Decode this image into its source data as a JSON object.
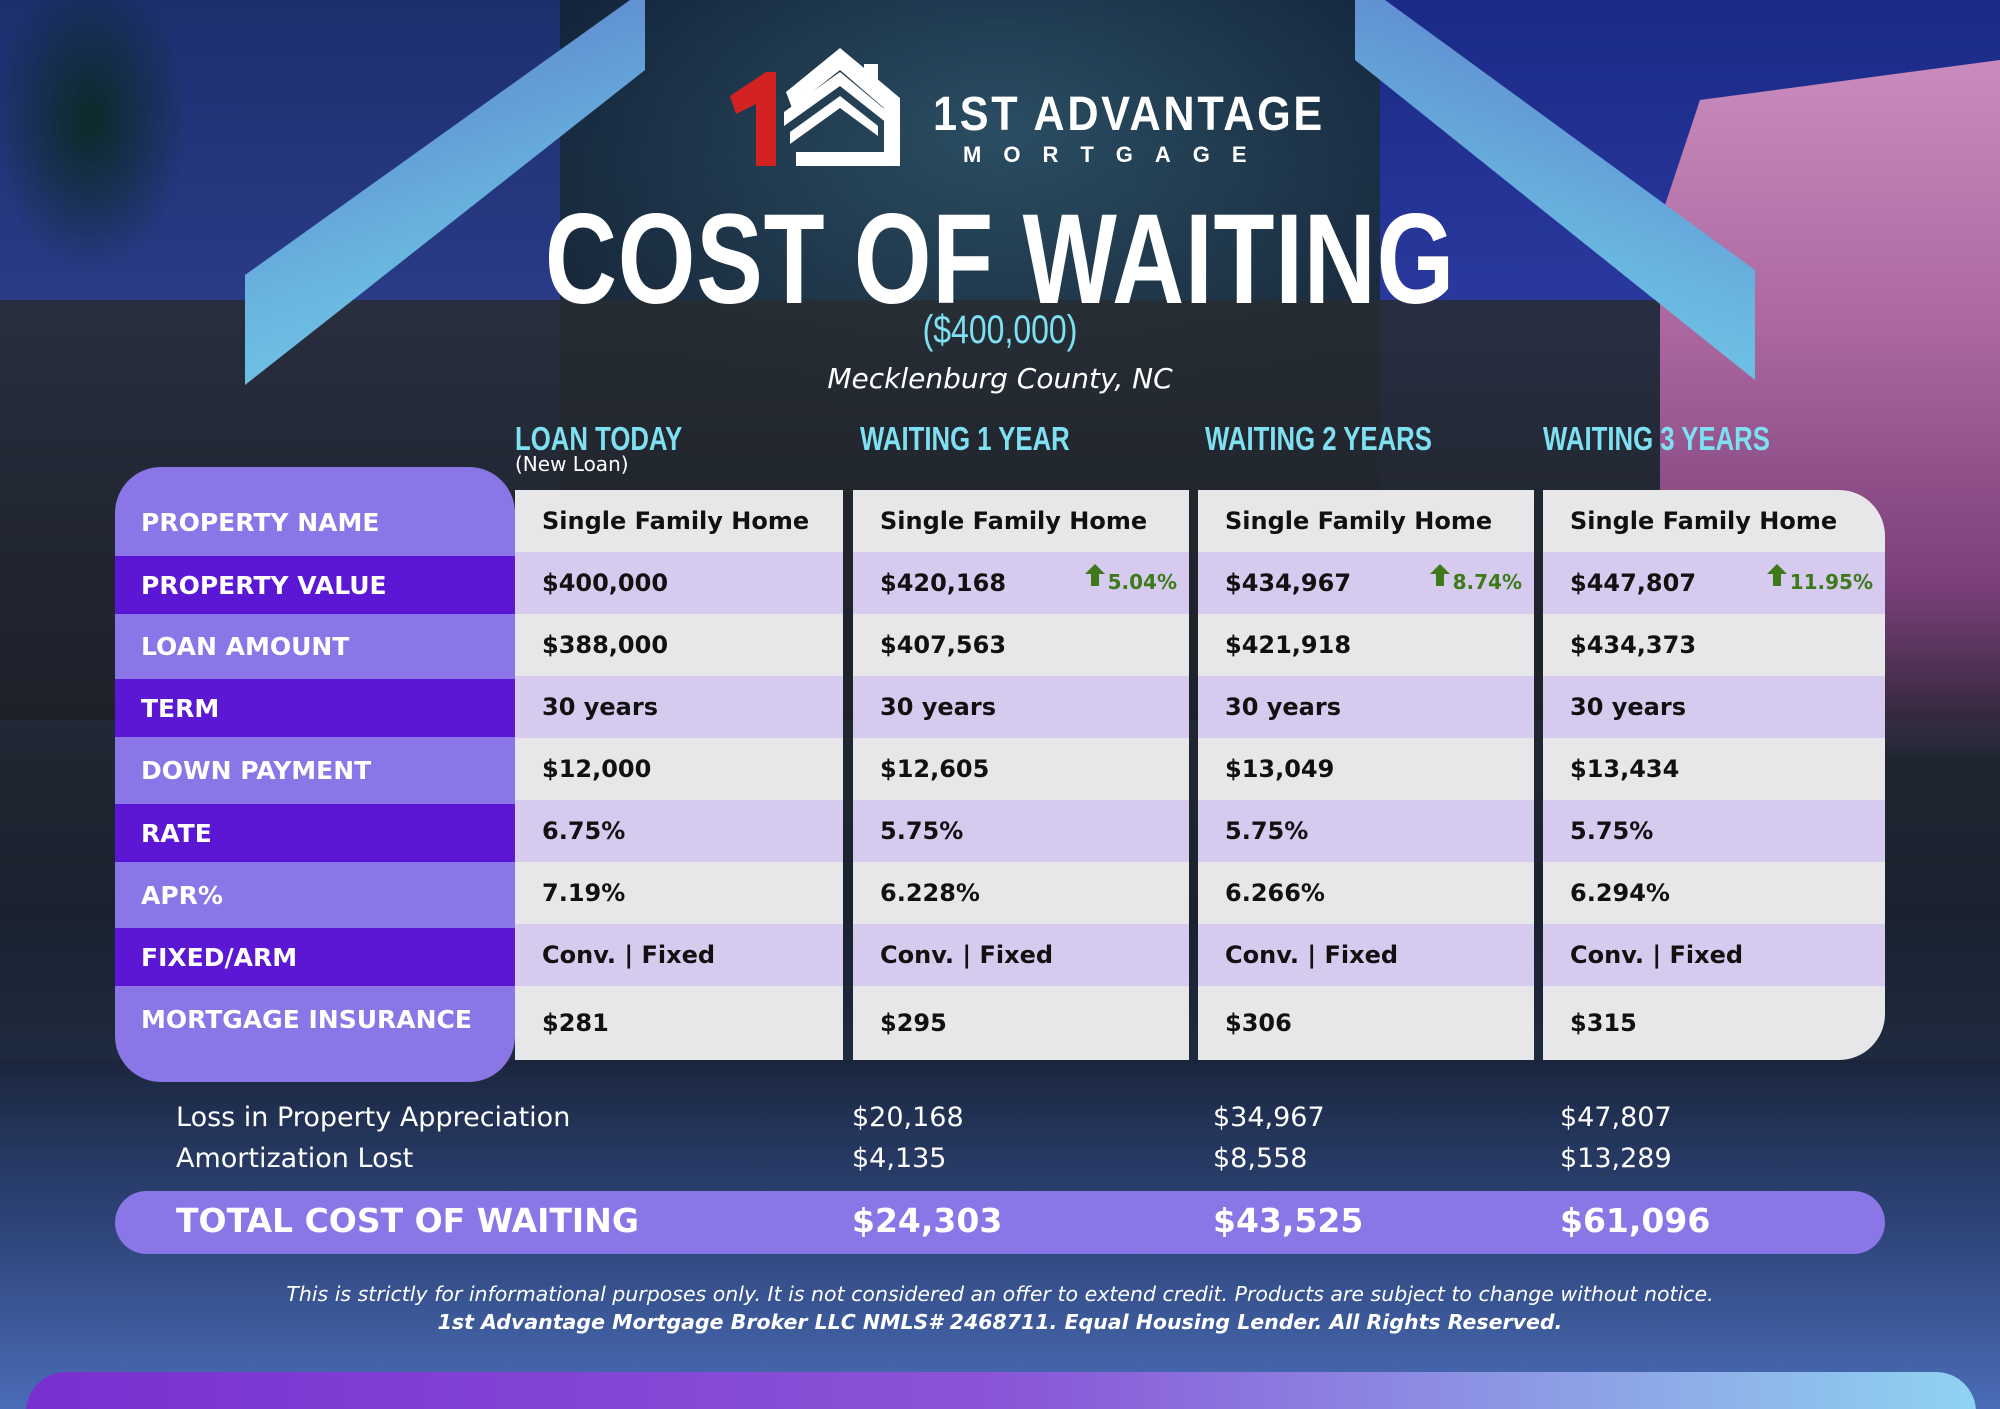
{
  "brand": {
    "name": "1ST ADVANTAGE",
    "sub": "MORTGAGE",
    "colors": {
      "red": "#d42222",
      "white": "#ffffff"
    }
  },
  "title": "COST OF WAITING",
  "subtitle": "($400,000)",
  "location": "Mecklenburg County, NC",
  "columns": [
    {
      "header": "LOAN TODAY",
      "subheader": "(New Loan)"
    },
    {
      "header": "WAITING 1 YEAR"
    },
    {
      "header": "WAITING 2 YEARS"
    },
    {
      "header": "WAITING 3 YEARS"
    }
  ],
  "row_labels": [
    "PROPERTY NAME",
    "PROPERTY VALUE",
    "LOAN AMOUNT",
    "TERM",
    "DOWN PAYMENT",
    "RATE",
    "APR%",
    "FIXED/ARM",
    "MORTGAGE INSURANCE"
  ],
  "table": [
    {
      "property_name": "Single Family Home",
      "property_value": "$400,000",
      "change": "",
      "loan_amount": "$388,000",
      "term": "30 years",
      "down_payment": "$12,000",
      "rate": "6.75%",
      "apr": "7.19%",
      "fixed_arm": "Conv. | Fixed",
      "mortgage_insurance": "$281"
    },
    {
      "property_name": "Single Family Home",
      "property_value": "$420,168",
      "change": "5.04%",
      "loan_amount": "$407,563",
      "term": "30 years",
      "down_payment": "$12,605",
      "rate": "5.75%",
      "apr": "6.228%",
      "fixed_arm": "Conv. | Fixed",
      "mortgage_insurance": "$295"
    },
    {
      "property_name": "Single Family Home",
      "property_value": "$434,967",
      "change": "8.74%",
      "loan_amount": "$421,918",
      "term": "30 years",
      "down_payment": "$13,049",
      "rate": "5.75%",
      "apr": "6.266%",
      "fixed_arm": "Conv. | Fixed",
      "mortgage_insurance": "$306"
    },
    {
      "property_name": "Single Family Home",
      "property_value": "$447,807",
      "change": "11.95%",
      "loan_amount": "$434,373",
      "term": "30 years",
      "down_payment": "$13,434",
      "rate": "5.75%",
      "apr": "6.294%",
      "fixed_arm": "Conv. | Fixed",
      "mortgage_insurance": "$315"
    }
  ],
  "summary": {
    "appreciation_label": "Loss in Property Appreciation",
    "amortization_label": "Amortization Lost",
    "total_label": "TOTAL COST OF WAITING",
    "appreciation": [
      "$20,168",
      "$34,967",
      "$47,807"
    ],
    "amortization": [
      "$4,135",
      "$8,558",
      "$13,289"
    ],
    "total": [
      "$24,303",
      "$43,525",
      "$61,096"
    ]
  },
  "disclaimer": "This is strictly for informational purposes only. It is not considered an offer to extend credit. Products are subject to change without notice.",
  "disclaimer_bold": "1st Advantage Mortgage Broker LLC NMLS# 2468711. Equal Housing Lender. All Rights Reserved.",
  "icons": {
    "change": "arrow-up-icon",
    "logo": "house-logo-icon"
  },
  "colors": {
    "label_light": "#8a76e6",
    "label_dark": "#5b17d3",
    "cell_light": "#e7e7e9",
    "cell_purple": "#d6cbef",
    "header_cyan": "#7fe0f2",
    "change_green": "#3e7a19"
  }
}
